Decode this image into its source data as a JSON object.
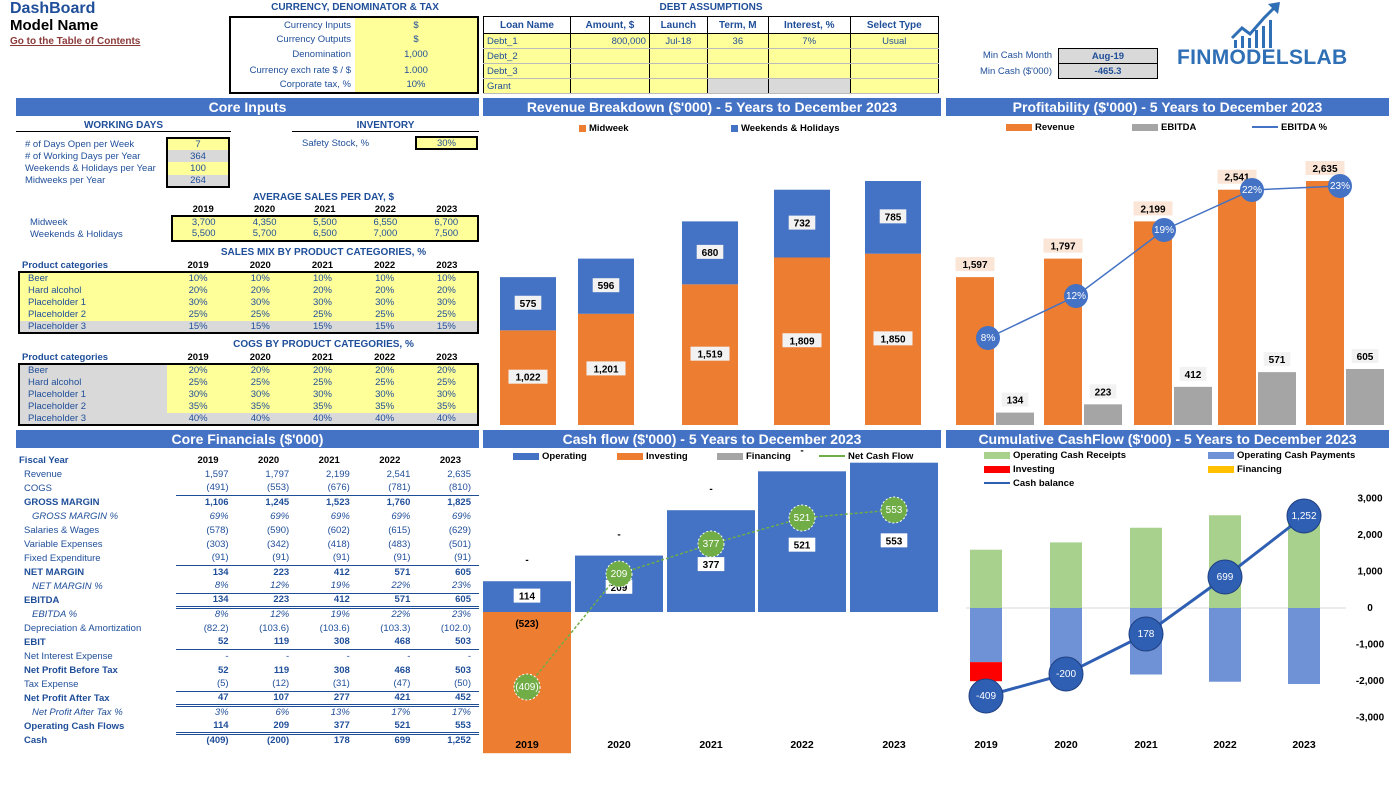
{
  "header": {
    "title": "DashBoard",
    "model": "Model Name",
    "toc_link": "Go to the Table of Contents",
    "brand": "FINMODELSLAB"
  },
  "currency": {
    "title": "CURRENCY, DENOMINATOR & TAX",
    "rows": [
      [
        "Currency Inputs",
        "$"
      ],
      [
        "Currency Outputs",
        "$"
      ],
      [
        "Denomination",
        "1,000"
      ],
      [
        "Currency exch rate $ / $",
        "1.000"
      ],
      [
        "Corporate tax, %",
        "10%"
      ]
    ]
  },
  "debt": {
    "title": "DEBT ASSUMPTIONS",
    "headers": [
      "Loan Name",
      "Amount, $",
      "Launch",
      "Term, M",
      "Interest, %",
      "Select Type"
    ],
    "rows": [
      [
        "Debt_1",
        "800,000",
        "Jul-18",
        "36",
        "7%",
        "Usual"
      ],
      [
        "Debt_2",
        "",
        "",
        "",
        "",
        ""
      ],
      [
        "Debt_3",
        "",
        "",
        "",
        "",
        ""
      ],
      [
        "Grant",
        "",
        "",
        "",
        "",
        ""
      ]
    ]
  },
  "mincash": {
    "month_label": "Min Cash Month",
    "month_value": "Aug-19",
    "cash_label": "Min Cash ($'000)",
    "cash_value": "-465.3"
  },
  "sections": {
    "core_inputs": "Core Inputs",
    "revenue": "Revenue Breakdown ($'000) - 5 Years to December 2023",
    "profit": "Profitability ($'000) - 5 Years to December 2023",
    "core_fin": "Core Financials ($'000)",
    "cashflow": "Cash flow ($'000) - 5 Years to December 2023",
    "cumulative": "Cumulative CashFlow ($'000) - 5 Years to December 2023"
  },
  "working": {
    "title": "WORKING DAYS",
    "rows": [
      [
        "# of Days Open per Week",
        "7"
      ],
      [
        "# of Working Days per Year",
        "364"
      ],
      [
        "Weekends & Holidays per Year",
        "100"
      ],
      [
        "Midweeks per Year",
        "264"
      ]
    ]
  },
  "inventory": {
    "title": "INVENTORY",
    "label": "Safety Stock, %",
    "value": "30%"
  },
  "years": [
    "2019",
    "2020",
    "2021",
    "2022",
    "2023"
  ],
  "avgsales": {
    "title": "AVERAGE SALES PER DAY, $",
    "rows": [
      [
        "Midweek",
        "3,700",
        "4,350",
        "5,500",
        "6,550",
        "6,700"
      ],
      [
        "Weekends & Holidays",
        "5,500",
        "5,700",
        "6,500",
        "7,000",
        "7,500"
      ]
    ]
  },
  "salesmix": {
    "title": "SALES MIX BY PRODUCT CATEGORIES, %",
    "cat_label": "Product categories",
    "rows": [
      [
        "Beer",
        "10%",
        "10%",
        "10%",
        "10%",
        "10%"
      ],
      [
        "Hard alcohol",
        "20%",
        "20%",
        "20%",
        "20%",
        "20%"
      ],
      [
        "Placeholder 1",
        "30%",
        "30%",
        "30%",
        "30%",
        "30%"
      ],
      [
        "Placeholder 2",
        "25%",
        "25%",
        "25%",
        "25%",
        "25%"
      ],
      [
        "Placeholder 3",
        "15%",
        "15%",
        "15%",
        "15%",
        "15%"
      ]
    ]
  },
  "cogs": {
    "title": "COGS BY PRODUCT CATEGORIES, %",
    "cat_label": "Product categories",
    "rows": [
      [
        "Beer",
        "20%",
        "20%",
        "20%",
        "20%",
        "20%"
      ],
      [
        "Hard alcohol",
        "25%",
        "25%",
        "25%",
        "25%",
        "25%"
      ],
      [
        "Placeholder 1",
        "30%",
        "30%",
        "30%",
        "30%",
        "30%"
      ],
      [
        "Placeholder 2",
        "35%",
        "35%",
        "35%",
        "35%",
        "35%"
      ],
      [
        "Placeholder 3",
        "40%",
        "40%",
        "40%",
        "40%",
        "40%"
      ]
    ]
  },
  "financials": {
    "label": "Fiscal Year",
    "rows": [
      [
        "Revenue",
        "1,597",
        "1,797",
        "2,199",
        "2,541",
        "2,635",
        "n"
      ],
      [
        "COGS",
        "(491)",
        "(553)",
        "(676)",
        "(781)",
        "(810)",
        "n"
      ],
      [
        "GROSS MARGIN",
        "1,106",
        "1,245",
        "1,523",
        "1,760",
        "1,825",
        "b"
      ],
      [
        "GROSS MARGIN %",
        "69%",
        "69%",
        "69%",
        "69%",
        "69%",
        "i"
      ],
      [
        "Salaries & Wages",
        "(578)",
        "(590)",
        "(602)",
        "(615)",
        "(629)",
        "n"
      ],
      [
        "Variable Expenses",
        "(303)",
        "(342)",
        "(418)",
        "(483)",
        "(501)",
        "n"
      ],
      [
        "Fixed Expenditure",
        "(91)",
        "(91)",
        "(91)",
        "(91)",
        "(91)",
        "n"
      ],
      [
        "NET MARGIN",
        "134",
        "223",
        "412",
        "571",
        "605",
        "b"
      ],
      [
        "NET MARGIN %",
        "8%",
        "12%",
        "19%",
        "22%",
        "23%",
        "i"
      ],
      [
        "EBITDA",
        "134",
        "223",
        "412",
        "571",
        "605",
        "b"
      ],
      [
        "EBITDA %",
        "8%",
        "12%",
        "19%",
        "22%",
        "23%",
        "i"
      ],
      [
        "Depreciation & Amortization",
        "(82.2)",
        "(103.6)",
        "(103.6)",
        "(103.3)",
        "(102.0)",
        "n"
      ],
      [
        "EBIT",
        "52",
        "119",
        "308",
        "468",
        "503",
        "b"
      ],
      [
        "Net Interest Expense",
        "-",
        "-",
        "-",
        "-",
        "-",
        "n"
      ],
      [
        "Net Profit Before Tax",
        "52",
        "119",
        "308",
        "468",
        "503",
        "b"
      ],
      [
        "Tax Expense",
        "(5)",
        "(12)",
        "(31)",
        "(47)",
        "(50)",
        "n"
      ],
      [
        "Net Profit After Tax",
        "47",
        "107",
        "277",
        "421",
        "452",
        "b"
      ],
      [
        "Net Profit After Tax %",
        "3%",
        "6%",
        "13%",
        "17%",
        "17%",
        "i"
      ],
      [
        "Operating Cash Flows",
        "114",
        "209",
        "377",
        "521",
        "553",
        "b"
      ],
      [
        "Cash",
        "(409)",
        "(200)",
        "178",
        "699",
        "1,252",
        "b"
      ]
    ]
  },
  "chart_data": [
    {
      "type": "bar",
      "title": "Revenue Breakdown ($'000) - 5 Years to December 2023",
      "categories": [
        "2019",
        "2020",
        "2021",
        "2022",
        "2023"
      ],
      "series": [
        {
          "name": "Midweek",
          "values": [
            1022,
            1201,
            1519,
            1809,
            1850
          ]
        },
        {
          "name": "Weekends & Holidays",
          "values": [
            575,
            596,
            680,
            732,
            785
          ]
        }
      ],
      "stacked": true,
      "colors": [
        "#ed7d31",
        "#4472c4"
      ],
      "legend": "top"
    },
    {
      "type": "bar",
      "title": "Profitability ($'000) - 5 Years to December 2023",
      "categories": [
        "2019",
        "2020",
        "2021",
        "2022",
        "2023"
      ],
      "series": [
        {
          "name": "Revenue",
          "values": [
            1597,
            1797,
            2199,
            2541,
            2635
          ]
        },
        {
          "name": "EBITDA",
          "values": [
            134,
            223,
            412,
            571,
            605
          ]
        },
        {
          "name": "EBITDA %",
          "type": "line",
          "values": [
            "8%",
            "12%",
            "19%",
            "22%",
            "23%"
          ]
        }
      ],
      "colors": [
        "#ed7d31",
        "#a5a5a5",
        "#4472c4"
      ],
      "legend": "top"
    },
    {
      "type": "bar",
      "title": "Cash flow ($'000) - 5 Years to December 2023",
      "categories": [
        "2019",
        "2020",
        "2021",
        "2022",
        "2023"
      ],
      "series": [
        {
          "name": "Operating",
          "values": [
            114,
            209,
            377,
            521,
            553
          ]
        },
        {
          "name": "Investing",
          "values": [
            -523,
            0,
            0,
            0,
            0
          ]
        },
        {
          "name": "Financing",
          "values": [
            0,
            0,
            0,
            0,
            0
          ]
        },
        {
          "name": "Net Cash Flow",
          "type": "line",
          "values": [
            -409,
            209,
            377,
            521,
            553
          ]
        }
      ],
      "colors": [
        "#4472c4",
        "#ed7d31",
        "#a5a5a5",
        "#70ad47"
      ],
      "legend": "top"
    },
    {
      "type": "bar",
      "title": "Cumulative CashFlow ($'000) - 5 Years to December 2023",
      "categories": [
        "2019",
        "2020",
        "2021",
        "2022",
        "2023"
      ],
      "series": [
        {
          "name": "Operating Cash Receipts",
          "values": [
            1597,
            1797,
            2199,
            2541,
            2635
          ]
        },
        {
          "name": "Operating Cash Payments",
          "values": [
            -1483,
            -1588,
            -1822,
            -2020,
            -2082
          ]
        },
        {
          "name": "Investing",
          "values": [
            -523,
            0,
            0,
            0,
            0
          ]
        },
        {
          "name": "Financing",
          "values": [
            0,
            0,
            0,
            0,
            0
          ]
        },
        {
          "name": "Cash balance",
          "type": "line",
          "values": [
            -409,
            -200,
            178,
            699,
            1252
          ]
        }
      ],
      "ylim": [
        -3000,
        3000
      ],
      "yticks": [
        "3,000",
        "2,000",
        "1,000",
        "0",
        "-1,000",
        "-2,000",
        "-3,000"
      ],
      "colors": [
        "#a9d18e",
        "#6f92d6",
        "#ff0000",
        "#ffc000",
        "#2f5fb3"
      ],
      "legend": "top"
    }
  ]
}
